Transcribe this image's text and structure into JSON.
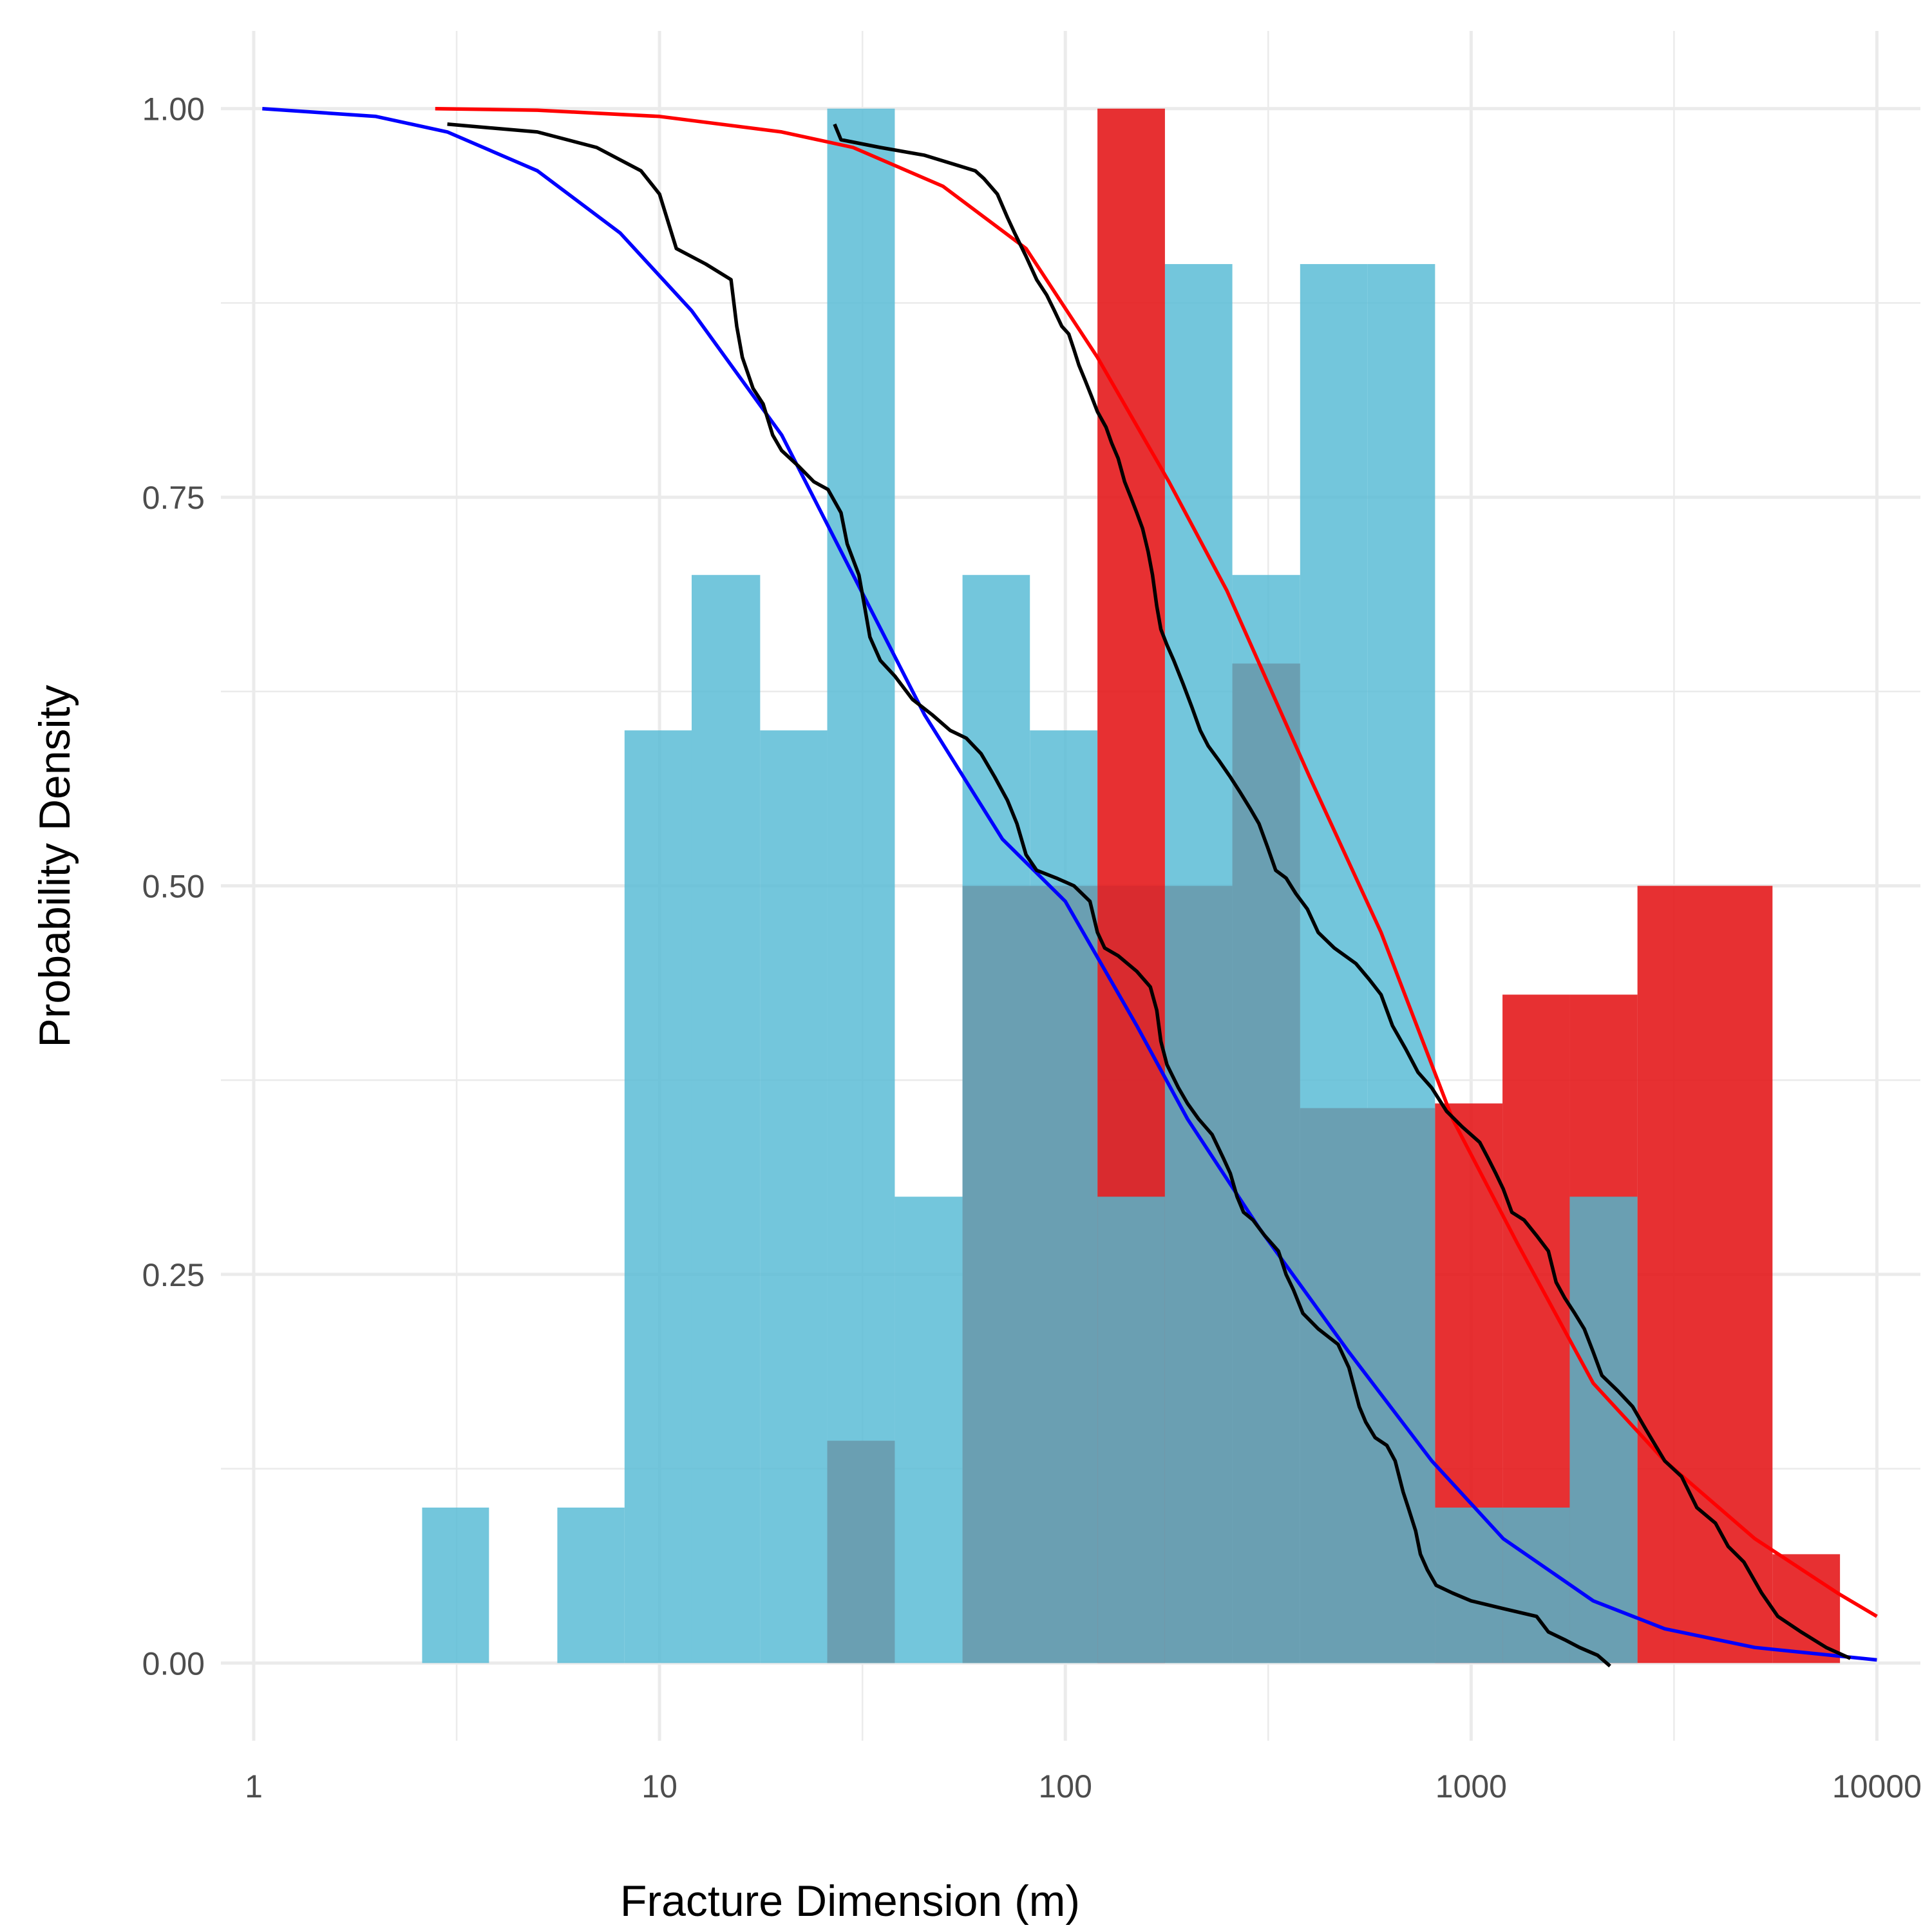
{
  "chart_data": {
    "type": "histogram",
    "xlabel": "Fracture Dimension (m)",
    "ylabel": "Probability Density",
    "x_scale": "log10",
    "xlim": [
      0.83,
      12800
    ],
    "ylim": [
      -0.05,
      1.05
    ],
    "x_ticks": [
      1,
      10,
      100,
      1000,
      10000
    ],
    "x_tick_labels": [
      "1",
      "10",
      "100",
      "1000",
      "10000"
    ],
    "y_ticks": [
      0,
      0.25,
      0.5,
      0.75,
      1
    ],
    "y_tick_labels": [
      "0.00",
      "0.25",
      "0.50",
      "0.75",
      "1.00"
    ],
    "grid": true,
    "legend": "none",
    "series": [
      {
        "kind": "histogram",
        "color": "#5bbcd6",
        "opacity": 0.85,
        "bins": [
          {
            "x0": 2.6,
            "x1": 3.8,
            "density": 0.1
          },
          {
            "x0": 5.6,
            "x1": 8.2,
            "density": 0.1
          },
          {
            "x0": 8.2,
            "x1": 12.0,
            "density": 0.6
          },
          {
            "x0": 12.0,
            "x1": 17.7,
            "density": 0.7
          },
          {
            "x0": 17.7,
            "x1": 25.9,
            "density": 0.6
          },
          {
            "x0": 25.9,
            "x1": 38.0,
            "density": 1.0
          },
          {
            "x0": 38.0,
            "x1": 55.8,
            "density": 0.3
          },
          {
            "x0": 55.8,
            "x1": 81.8,
            "density": 0.7
          },
          {
            "x0": 81.8,
            "x1": 120.0,
            "density": 0.6
          },
          {
            "x0": 120.0,
            "x1": 176.0,
            "density": 0.5
          },
          {
            "x0": 176.0,
            "x1": 258.0,
            "density": 0.9
          },
          {
            "x0": 258.0,
            "x1": 379.0,
            "density": 0.7
          },
          {
            "x0": 379.0,
            "x1": 556.0,
            "density": 0.9
          },
          {
            "x0": 556.0,
            "x1": 815.0,
            "density": 0.9
          },
          {
            "x0": 1750.0,
            "x1": 2570.0,
            "density": 0.3
          }
        ]
      },
      {
        "kind": "histogram",
        "color": "#e41a1c",
        "opacity": 0.9,
        "bins": [
          {
            "x0": 120.0,
            "x1": 176.0,
            "density": 1.0
          },
          {
            "x0": 815.0,
            "x1": 1195.0,
            "density": 0.36
          },
          {
            "x0": 1195.0,
            "x1": 1750.0,
            "density": 0.43
          },
          {
            "x0": 1750.0,
            "x1": 2570.0,
            "density": 0.43
          },
          {
            "x0": 2570.0,
            "x1": 3770.0,
            "density": 0.5
          },
          {
            "x0": 3770.0,
            "x1": 5530.0,
            "density": 0.5
          },
          {
            "x0": 5530.0,
            "x1": 8110.0,
            "density": 0.07
          }
        ]
      },
      {
        "kind": "overlap",
        "color": "#6a9fb2",
        "bins": [
          {
            "x0": 25.9,
            "x1": 38.0,
            "density": 0.143
          },
          {
            "x0": 55.8,
            "x1": 120.0,
            "density": 0.5
          },
          {
            "x0": 120.0,
            "x1": 176.0,
            "density": 0.3
          },
          {
            "x0": 176.0,
            "x1": 258.0,
            "density": 0.5
          },
          {
            "x0": 258.0,
            "x1": 379.0,
            "density": 0.643
          },
          {
            "x0": 379.0,
            "x1": 815.0,
            "density": 0.357
          },
          {
            "x0": 815.0,
            "x1": 1195.0,
            "density": 0.1
          },
          {
            "x0": 1195.0,
            "x1": 1750.0,
            "density": 0.1
          },
          {
            "x0": 1750.0,
            "x1": 2570.0,
            "density": 0.3
          }
        ]
      },
      {
        "kind": "line",
        "color": "#0000ff",
        "points": [
          [
            1.05,
            1.0
          ],
          [
            2,
            0.995
          ],
          [
            3,
            0.985
          ],
          [
            5,
            0.96
          ],
          [
            8,
            0.92
          ],
          [
            12,
            0.87
          ],
          [
            20,
            0.79
          ],
          [
            30,
            0.7
          ],
          [
            45,
            0.61
          ],
          [
            70,
            0.53
          ],
          [
            100,
            0.49
          ],
          [
            150,
            0.41
          ],
          [
            200,
            0.35
          ],
          [
            300,
            0.28
          ],
          [
            500,
            0.2
          ],
          [
            800,
            0.13
          ],
          [
            1200,
            0.08
          ],
          [
            2000,
            0.04
          ],
          [
            3000,
            0.022
          ],
          [
            5000,
            0.01
          ],
          [
            10000,
            0.002
          ]
        ]
      },
      {
        "kind": "line",
        "color": "#ff0000",
        "points": [
          [
            2.8,
            1.0
          ],
          [
            5,
            0.999
          ],
          [
            10,
            0.995
          ],
          [
            20,
            0.985
          ],
          [
            30,
            0.975
          ],
          [
            50,
            0.95
          ],
          [
            80,
            0.91
          ],
          [
            120,
            0.84
          ],
          [
            180,
            0.76
          ],
          [
            250,
            0.69
          ],
          [
            400,
            0.57
          ],
          [
            600,
            0.47
          ],
          [
            900,
            0.35
          ],
          [
            1300,
            0.27
          ],
          [
            2000,
            0.18
          ],
          [
            3000,
            0.13
          ],
          [
            5000,
            0.08
          ],
          [
            8000,
            0.045
          ],
          [
            10000,
            0.03
          ]
        ]
      },
      {
        "kind": "line",
        "color": "#000000",
        "points": [
          [
            3,
            0.99
          ],
          [
            5,
            0.985
          ],
          [
            7,
            0.975
          ],
          [
            9,
            0.96
          ],
          [
            10,
            0.945
          ],
          [
            11,
            0.91
          ],
          [
            13,
            0.9
          ],
          [
            15,
            0.89
          ],
          [
            15.5,
            0.86
          ],
          [
            16,
            0.84
          ],
          [
            17,
            0.82
          ],
          [
            18,
            0.81
          ],
          [
            19,
            0.79
          ],
          [
            20,
            0.78
          ],
          [
            22,
            0.77
          ],
          [
            24,
            0.76
          ],
          [
            26,
            0.755
          ],
          [
            28,
            0.74
          ],
          [
            29,
            0.72
          ],
          [
            31,
            0.7
          ],
          [
            32,
            0.68
          ],
          [
            33,
            0.66
          ],
          [
            35,
            0.645
          ],
          [
            38,
            0.635
          ],
          [
            42,
            0.62
          ],
          [
            47,
            0.61
          ],
          [
            52,
            0.6
          ],
          [
            57,
            0.595
          ],
          [
            62,
            0.585
          ],
          [
            67,
            0.57
          ],
          [
            72,
            0.555
          ],
          [
            76,
            0.54
          ],
          [
            80,
            0.52
          ],
          [
            85,
            0.51
          ],
          [
            95,
            0.505
          ],
          [
            105,
            0.5
          ],
          [
            115,
            0.49
          ],
          [
            120,
            0.47
          ],
          [
            125,
            0.46
          ],
          [
            135,
            0.455
          ],
          [
            150,
            0.445
          ],
          [
            162,
            0.435
          ],
          [
            168,
            0.42
          ],
          [
            172,
            0.4
          ],
          [
            178,
            0.385
          ],
          [
            190,
            0.37
          ],
          [
            200,
            0.36
          ],
          [
            213,
            0.35
          ],
          [
            230,
            0.34
          ],
          [
            245,
            0.325
          ],
          [
            255,
            0.315
          ],
          [
            265,
            0.3
          ],
          [
            275,
            0.29
          ],
          [
            290,
            0.285
          ],
          [
            310,
            0.275
          ],
          [
            335,
            0.265
          ],
          [
            350,
            0.25
          ],
          [
            365,
            0.24
          ],
          [
            385,
            0.225
          ],
          [
            420,
            0.215
          ],
          [
            470,
            0.205
          ],
          [
            500,
            0.19
          ],
          [
            530,
            0.165
          ],
          [
            550,
            0.155
          ],
          [
            580,
            0.145
          ],
          [
            620,
            0.14
          ],
          [
            650,
            0.13
          ],
          [
            680,
            0.11
          ],
          [
            700,
            0.1
          ],
          [
            730,
            0.085
          ],
          [
            750,
            0.07
          ],
          [
            780,
            0.06
          ],
          [
            820,
            0.05
          ],
          [
            900,
            0.045
          ],
          [
            1000,
            0.04
          ],
          [
            1200,
            0.035
          ],
          [
            1450,
            0.03
          ],
          [
            1550,
            0.02
          ],
          [
            1700,
            0.015
          ],
          [
            1850,
            0.01
          ],
          [
            2050,
            0.005
          ],
          [
            2200,
            -0.002
          ]
        ]
      },
      {
        "kind": "line",
        "color": "#000000",
        "points": [
          [
            27,
            0.99
          ],
          [
            28,
            0.98
          ],
          [
            35,
            0.975
          ],
          [
            45,
            0.97
          ],
          [
            60,
            0.96
          ],
          [
            63,
            0.955
          ],
          [
            68,
            0.945
          ],
          [
            72,
            0.93
          ],
          [
            75,
            0.92
          ],
          [
            80,
            0.905
          ],
          [
            85,
            0.89
          ],
          [
            90,
            0.88
          ],
          [
            94,
            0.87
          ],
          [
            98,
            0.86
          ],
          [
            102,
            0.855
          ],
          [
            105,
            0.845
          ],
          [
            108,
            0.835
          ],
          [
            112,
            0.825
          ],
          [
            116,
            0.815
          ],
          [
            120,
            0.805
          ],
          [
            126,
            0.795
          ],
          [
            130,
            0.785
          ],
          [
            135,
            0.775
          ],
          [
            140,
            0.76
          ],
          [
            145,
            0.75
          ],
          [
            150,
            0.74
          ],
          [
            155,
            0.73
          ],
          [
            160,
            0.715
          ],
          [
            164,
            0.7
          ],
          [
            168,
            0.68
          ],
          [
            172,
            0.665
          ],
          [
            178,
            0.655
          ],
          [
            185,
            0.645
          ],
          [
            195,
            0.63
          ],
          [
            205,
            0.615
          ],
          [
            215,
            0.6
          ],
          [
            225,
            0.59
          ],
          [
            240,
            0.58
          ],
          [
            255,
            0.57
          ],
          [
            270,
            0.56
          ],
          [
            285,
            0.55
          ],
          [
            300,
            0.54
          ],
          [
            315,
            0.525
          ],
          [
            330,
            0.51
          ],
          [
            350,
            0.505
          ],
          [
            370,
            0.495
          ],
          [
            395,
            0.485
          ],
          [
            420,
            0.47
          ],
          [
            460,
            0.46
          ],
          [
            520,
            0.45
          ],
          [
            560,
            0.44
          ],
          [
            600,
            0.43
          ],
          [
            640,
            0.41
          ],
          [
            690,
            0.395
          ],
          [
            740,
            0.38
          ],
          [
            800,
            0.37
          ],
          [
            870,
            0.355
          ],
          [
            950,
            0.345
          ],
          [
            1050,
            0.335
          ],
          [
            1100,
            0.325
          ],
          [
            1150,
            0.315
          ],
          [
            1200,
            0.305
          ],
          [
            1260,
            0.29
          ],
          [
            1350,
            0.285
          ],
          [
            1450,
            0.275
          ],
          [
            1550,
            0.265
          ],
          [
            1620,
            0.245
          ],
          [
            1700,
            0.235
          ],
          [
            1800,
            0.225
          ],
          [
            1900,
            0.215
          ],
          [
            2000,
            0.2
          ],
          [
            2100,
            0.185
          ],
          [
            2300,
            0.175
          ],
          [
            2500,
            0.165
          ],
          [
            2700,
            0.15
          ],
          [
            3000,
            0.13
          ],
          [
            3300,
            0.12
          ],
          [
            3600,
            0.1
          ],
          [
            4000,
            0.09
          ],
          [
            4300,
            0.075
          ],
          [
            4700,
            0.065
          ],
          [
            5200,
            0.045
          ],
          [
            5700,
            0.03
          ],
          [
            6500,
            0.02
          ],
          [
            7500,
            0.01
          ],
          [
            8600,
            0.003
          ]
        ]
      }
    ]
  }
}
